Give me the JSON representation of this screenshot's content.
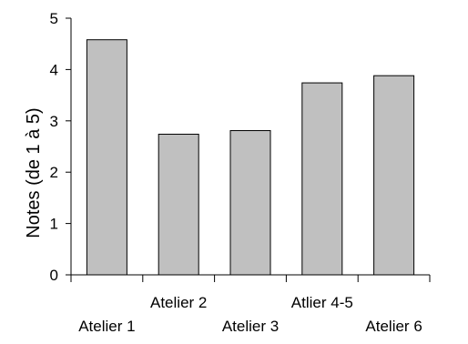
{
  "chart_data": {
    "type": "bar",
    "title": "",
    "xlabel": "",
    "ylabel": "Notes (de 1 à 5)",
    "categories": [
      "Atelier 1",
      "Atelier 2",
      "Atelier 3",
      "Atlier 4-5",
      "Atelier 6"
    ],
    "values": [
      4.58,
      2.74,
      2.81,
      3.74,
      3.88
    ],
    "ylim": [
      0,
      5
    ],
    "yticks": [
      "0",
      "1",
      "2",
      "3",
      "4",
      "5"
    ],
    "grid": false,
    "legend": "none",
    "colors": {
      "bar_fill": "#c0c0c0",
      "bar_stroke": "#000000",
      "axis": "#000000"
    }
  }
}
